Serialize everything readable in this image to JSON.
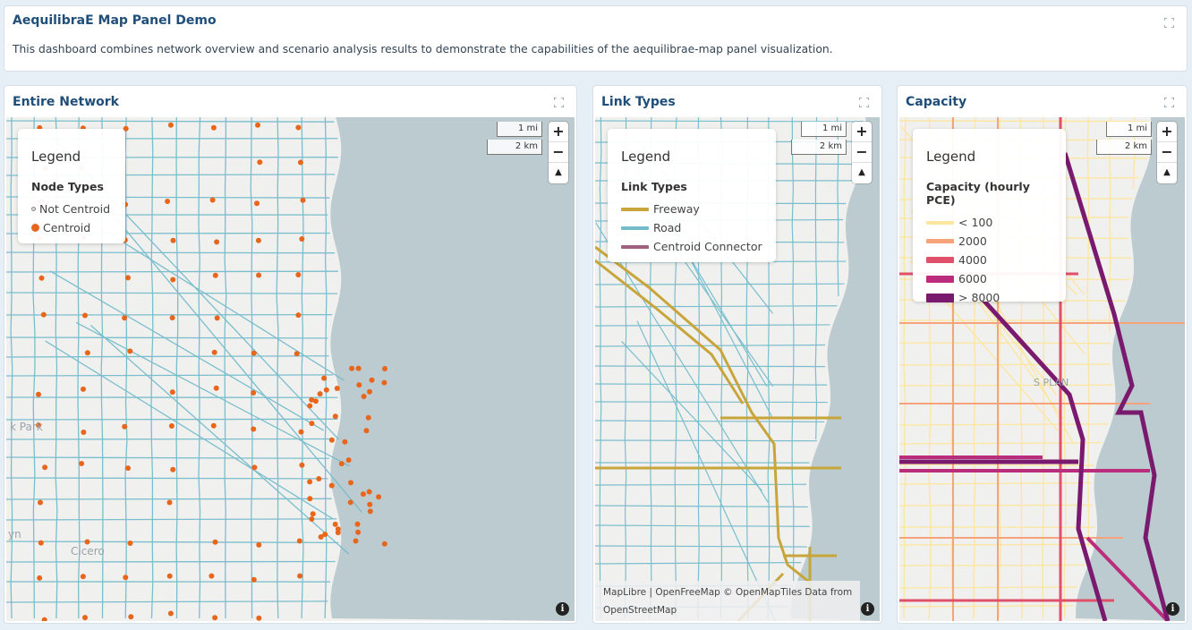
{
  "intro": {
    "title": "AequilibraE Map Panel Demo",
    "text": "This dashboard combines network overview and scenario analysis results to demonstrate the capabilities of the aequilibrae-map panel visualization."
  },
  "map_controls": {
    "scale_mi": "1 mi",
    "scale_km": "2 km",
    "zoom_in": "+",
    "zoom_out": "−",
    "compass": "▲"
  },
  "panels": [
    {
      "title": "Entire Network",
      "legend": {
        "title": "Legend",
        "subtitle": "Node Types",
        "items": [
          {
            "label": "Not Centroid",
            "color": "#9aa0a6"
          },
          {
            "label": "Centroid",
            "color": "#e8661c"
          }
        ]
      },
      "places": [
        "k Park",
        "Cicero",
        "yn"
      ]
    },
    {
      "title": "Link Types",
      "legend": {
        "title": "Legend",
        "subtitle": "Link Types",
        "items": [
          {
            "label": "Freeway",
            "color": "#c8a53a"
          },
          {
            "label": "Road",
            "color": "#74bccc"
          },
          {
            "label": "Centroid Connector",
            "color": "#a0607e"
          }
        ]
      },
      "attribution": "MapLibre | OpenFreeMap © OpenMapTiles Data from OpenStreetMap"
    },
    {
      "title": "Capacity",
      "legend": {
        "title": "Legend",
        "subtitle": "Capacity (hourly PCE)",
        "items": [
          {
            "label": "< 100",
            "color": "#fde6a0"
          },
          {
            "label": "2000",
            "color": "#f6a27a"
          },
          {
            "label": "4000",
            "color": "#e0506a"
          },
          {
            "label": "6000",
            "color": "#b92d7c"
          },
          {
            "label": "> 8000",
            "color": "#7a1a6e"
          }
        ]
      },
      "places": [
        "S PLAN"
      ]
    }
  ],
  "info_label": "i"
}
